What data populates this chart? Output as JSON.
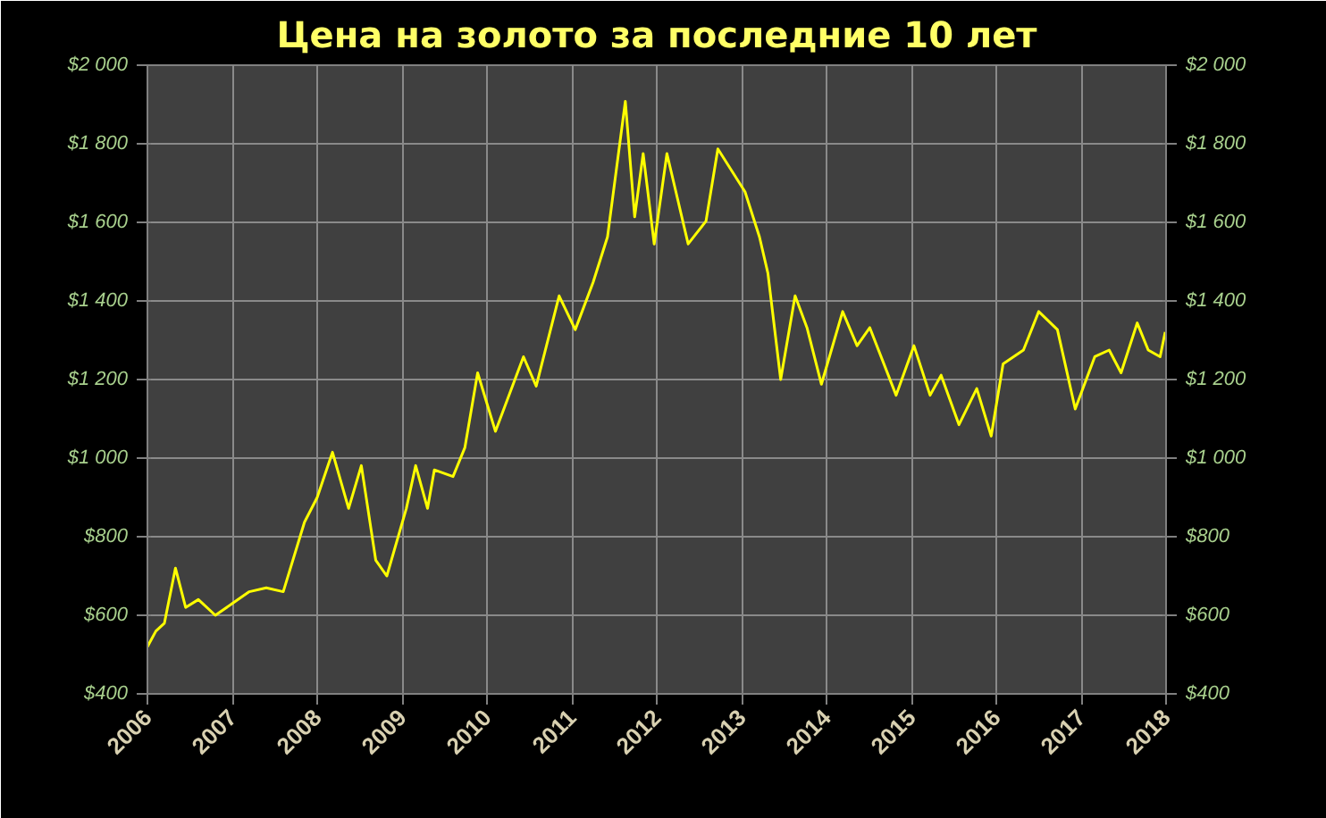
{
  "chart_data": {
    "type": "line",
    "title": "Цена на золото за последние 10 лет",
    "x": [
      2006.0,
      2006.1,
      2006.2,
      2006.33,
      2006.45,
      2006.6,
      2006.8,
      2007.0,
      2007.2,
      2007.4,
      2007.6,
      2007.85,
      2008.0,
      2008.18,
      2008.37,
      2008.52,
      2008.69,
      2008.82,
      2009.05,
      2009.16,
      2009.3,
      2009.38,
      2009.6,
      2009.74,
      2009.89,
      2010.1,
      2010.43,
      2010.58,
      2010.85,
      2011.04,
      2011.25,
      2011.42,
      2011.63,
      2011.74,
      2011.84,
      2011.97,
      2012.12,
      2012.37,
      2012.58,
      2012.72,
      2013.04,
      2013.21,
      2013.31,
      2013.46,
      2013.63,
      2013.77,
      2013.94,
      2014.19,
      2014.36,
      2014.51,
      2014.82,
      2015.03,
      2015.22,
      2015.35,
      2015.56,
      2015.77,
      2015.94,
      2016.08,
      2016.32,
      2016.5,
      2016.72,
      2016.93,
      2017.16,
      2017.33,
      2017.47,
      2017.66,
      2017.79,
      2017.93,
      2017.99
    ],
    "series": [
      {
        "color": "#ffff00",
        "values": [
          520,
          560,
          580,
          720,
          620,
          640,
          600,
          630,
          660,
          670,
          660,
          837,
          900,
          1015,
          872,
          981,
          740,
          700,
          872,
          981,
          872,
          970,
          953,
          1027,
          1217,
          1068,
          1258,
          1183,
          1413,
          1327,
          1447,
          1563,
          1908,
          1614,
          1775,
          1545,
          1775,
          1545,
          1603,
          1787,
          1678,
          1563,
          1470,
          1200,
          1413,
          1332,
          1188,
          1373,
          1286,
          1332,
          1160,
          1286,
          1160,
          1211,
          1085,
          1177,
          1056,
          1240,
          1275,
          1373,
          1327,
          1125,
          1258,
          1275,
          1217,
          1344,
          1275,
          1258,
          1321
        ]
      }
    ],
    "xlim": [
      2006,
      2018
    ],
    "xticks": [
      2006,
      2007,
      2008,
      2009,
      2010,
      2011,
      2012,
      2013,
      2014,
      2015,
      2016,
      2017,
      2018
    ],
    "ylim": [
      400,
      2000
    ],
    "yticks": [
      {
        "value": 400,
        "label": "$400"
      },
      {
        "value": 600,
        "label": "$600"
      },
      {
        "value": 800,
        "label": "$800"
      },
      {
        "value": 1000,
        "label": "$1 000"
      },
      {
        "value": 1200,
        "label": "$1 200"
      },
      {
        "value": 1400,
        "label": "$1 400"
      },
      {
        "value": 1600,
        "label": "$1 600"
      },
      {
        "value": 1800,
        "label": "$1 800"
      },
      {
        "value": 2000,
        "label": "$2 000"
      }
    ],
    "y2lim": [
      400,
      2000
    ],
    "y2ticks": [
      {
        "value": 400,
        "label": "$400"
      },
      {
        "value": 600,
        "label": "$600"
      },
      {
        "value": 800,
        "label": "$800"
      },
      {
        "value": 1000,
        "label": "$1 000"
      },
      {
        "value": 1200,
        "label": "$1 200"
      },
      {
        "value": 1400,
        "label": "$1 400"
      },
      {
        "value": 1600,
        "label": "$1 600"
      },
      {
        "value": 1800,
        "label": "$1 800"
      },
      {
        "value": 2000,
        "label": "$2 000"
      }
    ],
    "grid": true
  }
}
